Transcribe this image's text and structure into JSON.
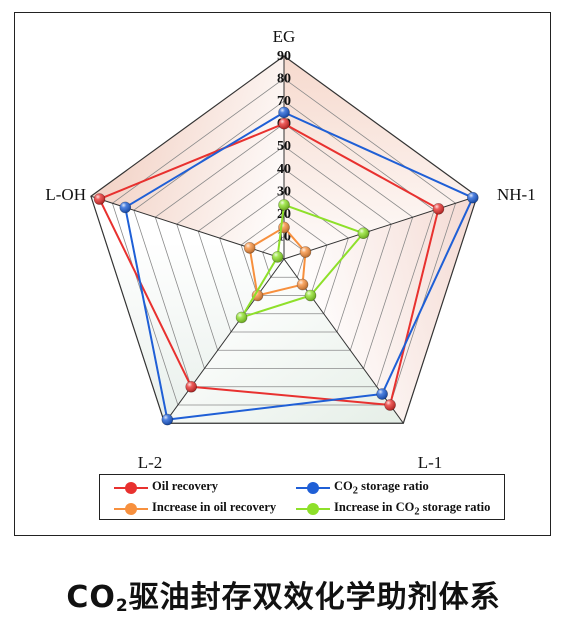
{
  "chart_data": {
    "type": "radar",
    "axes": [
      "EG",
      "NH-1",
      "L-1",
      "L-2",
      "L-OH"
    ],
    "scale": {
      "min": 0,
      "max": 90,
      "step": 10
    },
    "tick_labels": [
      "10",
      "20",
      "30",
      "40",
      "50",
      "60",
      "70",
      "80",
      "90"
    ],
    "series": [
      {
        "name": "Oil recovery",
        "color": "#e8312f",
        "values": [
          60,
          72,
          80,
          70,
          86
        ]
      },
      {
        "name": "CO2 storage ratio",
        "color": "#1f5fd6",
        "values": [
          65,
          88,
          74,
          88,
          74
        ]
      },
      {
        "name": "Increase in oil recovery",
        "color": "#f7903e",
        "values": [
          14,
          10,
          14,
          20,
          16
        ]
      },
      {
        "name": "Increase in CO2 storage ratio",
        "color": "#8ee02a",
        "values": [
          24,
          37,
          20,
          32,
          3
        ]
      }
    ]
  },
  "legend": [
    {
      "name_main": "Oil recovery",
      "name_sub": "",
      "name_tail": ""
    },
    {
      "name_main": "CO",
      "name_sub": "2",
      "name_tail": " storage ratio"
    },
    {
      "name_main": "Increase in oil recovery",
      "name_sub": "",
      "name_tail": ""
    },
    {
      "name_main": "Increase in CO",
      "name_sub": "2",
      "name_tail": " storage ratio"
    }
  ],
  "caption": {
    "main": "CO",
    "sub": "2",
    "tail": "驱油封存双效化学助剂体系"
  }
}
